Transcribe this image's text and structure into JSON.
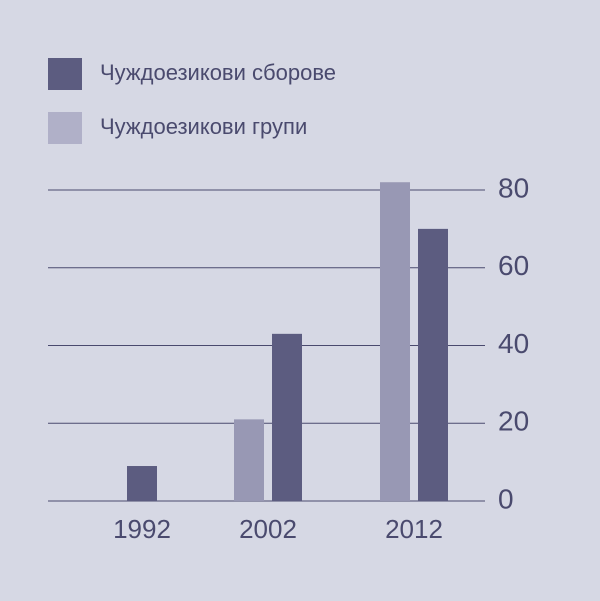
{
  "chart_data": {
    "type": "bar",
    "categories": [
      "1992",
      "2002",
      "2012"
    ],
    "series": [
      {
        "name": "Чуждоезикови сборове",
        "color": "#5c5c80",
        "values": [
          9,
          43,
          70
        ]
      },
      {
        "name": "Чуждоезикови групи",
        "color": "#9898b4",
        "values": [
          null,
          21,
          82
        ]
      }
    ],
    "ylim": [
      0,
      80
    ],
    "yticks": [
      0,
      20,
      40,
      60,
      80
    ],
    "grid": true
  }
}
